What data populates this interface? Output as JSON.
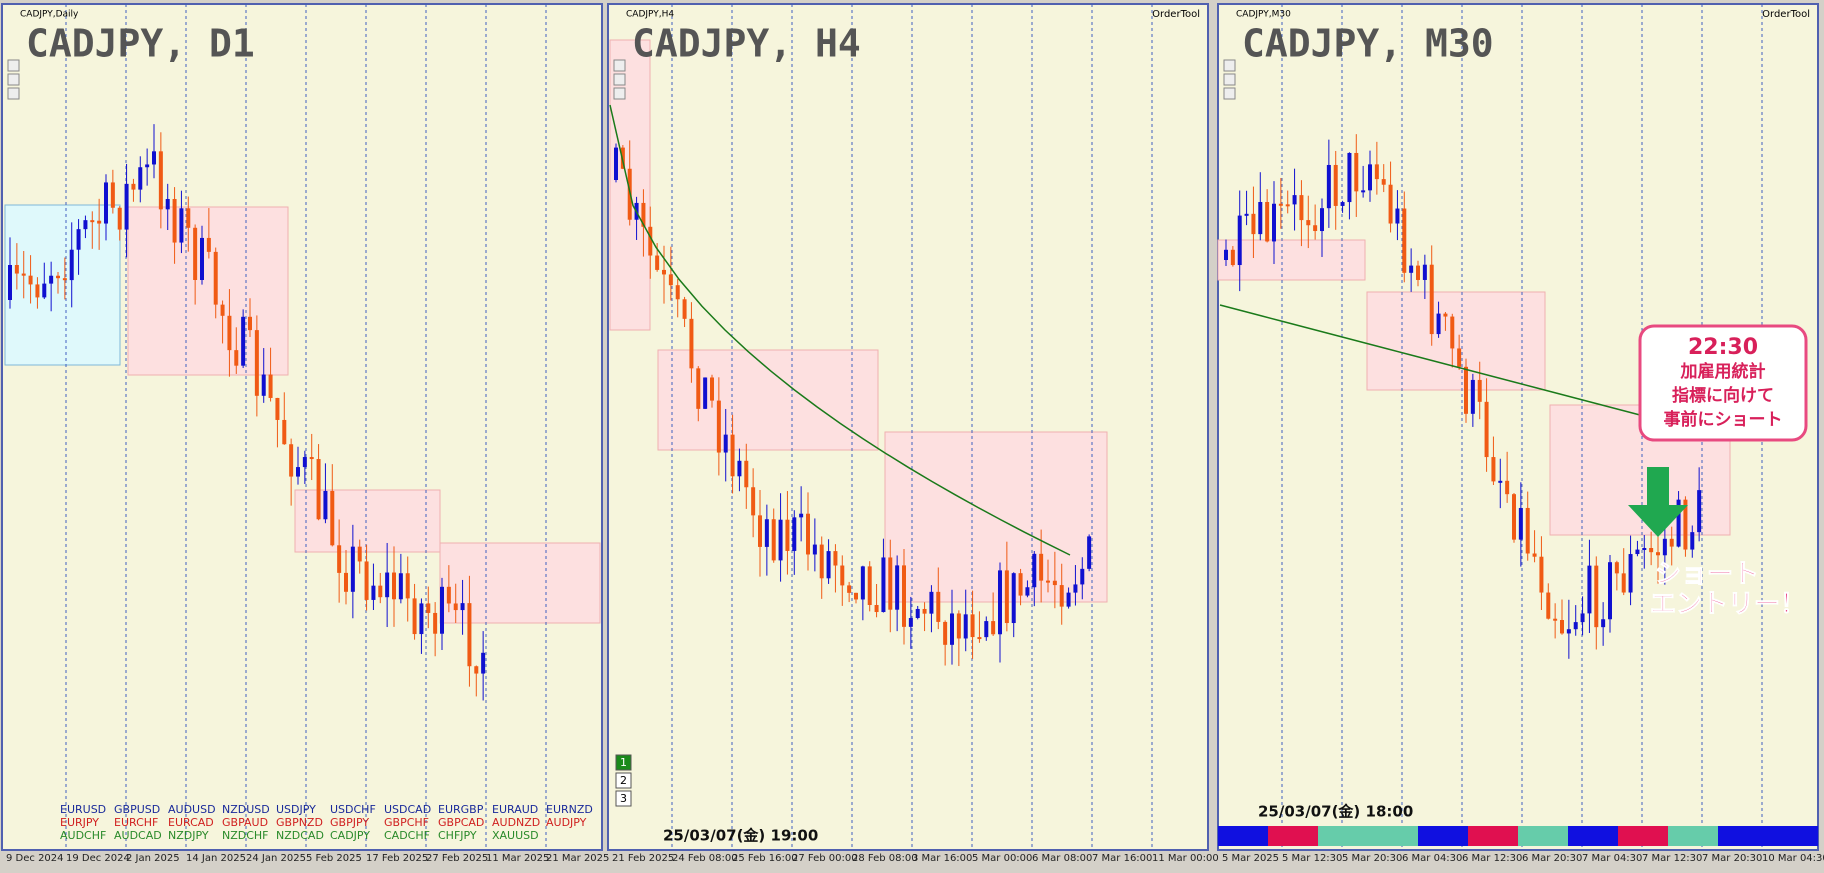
{
  "panels": [
    {
      "symbol_label": "CADJPY,Daily",
      "title": "CADJPY, D1",
      "x_labels": [
        "9 Dec 2024",
        "19 Dec 2024",
        "2 Jan 2025",
        "14 Jan 2025",
        "24 Jan 2025",
        "5 Feb 2025",
        "17 Feb 2025",
        "27 Feb 2025",
        "11 Mar 2025",
        "21 Mar 2025"
      ],
      "pairs": [
        [
          "EURUSD",
          "GBPUSD",
          "AUDUSD",
          "NZDUSD",
          "USDJPY",
          "USDCHF",
          "USDCAD",
          "EURGBP",
          "EURAUD",
          "EURNZD"
        ],
        [
          "EURJPY",
          "EURCHF",
          "EURCAD",
          "GBPAUD",
          "GBPNZD",
          "GBPJPY",
          "GBPCHF",
          "GBPCAD",
          "AUDNZD",
          "AUDJPY"
        ],
        [
          "AUDCHF",
          "AUDCAD",
          "NZDJPY",
          "NZDCHF",
          "NZDCAD",
          "CADJPY",
          "CADCHF",
          "CHFJPY",
          "XAUUSD"
        ]
      ]
    },
    {
      "symbol_label": "CADJPY,H4",
      "title": "CADJPY, H4",
      "order_tool": "OrderTool",
      "x_labels": [
        "21 Feb 2025",
        "24 Feb 08:00",
        "25 Feb 16:00",
        "27 Feb 00:00",
        "28 Feb 08:00",
        "3 Mar 16:00",
        "5 Mar 00:00",
        "6 Mar 08:00",
        "7 Mar 16:00",
        "11 Mar 00:00"
      ],
      "timestamp": "25/03/07(金) 19:00",
      "buttons": [
        "1",
        "2",
        "3"
      ]
    },
    {
      "symbol_label": "CADJPY,M30",
      "title": "CADJPY, M30",
      "order_tool": "OrderTool",
      "x_labels": [
        "5 Mar 2025",
        "5 Mar 12:30",
        "5 Mar 20:30",
        "6 Mar 04:30",
        "6 Mar 12:30",
        "6 Mar 20:30",
        "7 Mar 04:30",
        "7 Mar 12:30",
        "7 Mar 20:30",
        "10 Mar 04:30"
      ],
      "timestamp": "25/03/07(金) 18:00",
      "callout": {
        "lines": [
          "22:30",
          "加雇用統計",
          "指標に向けて",
          "事前にショート"
        ]
      },
      "entry": {
        "lines": [
          "ショート",
          "エントリー！"
        ]
      }
    }
  ]
}
